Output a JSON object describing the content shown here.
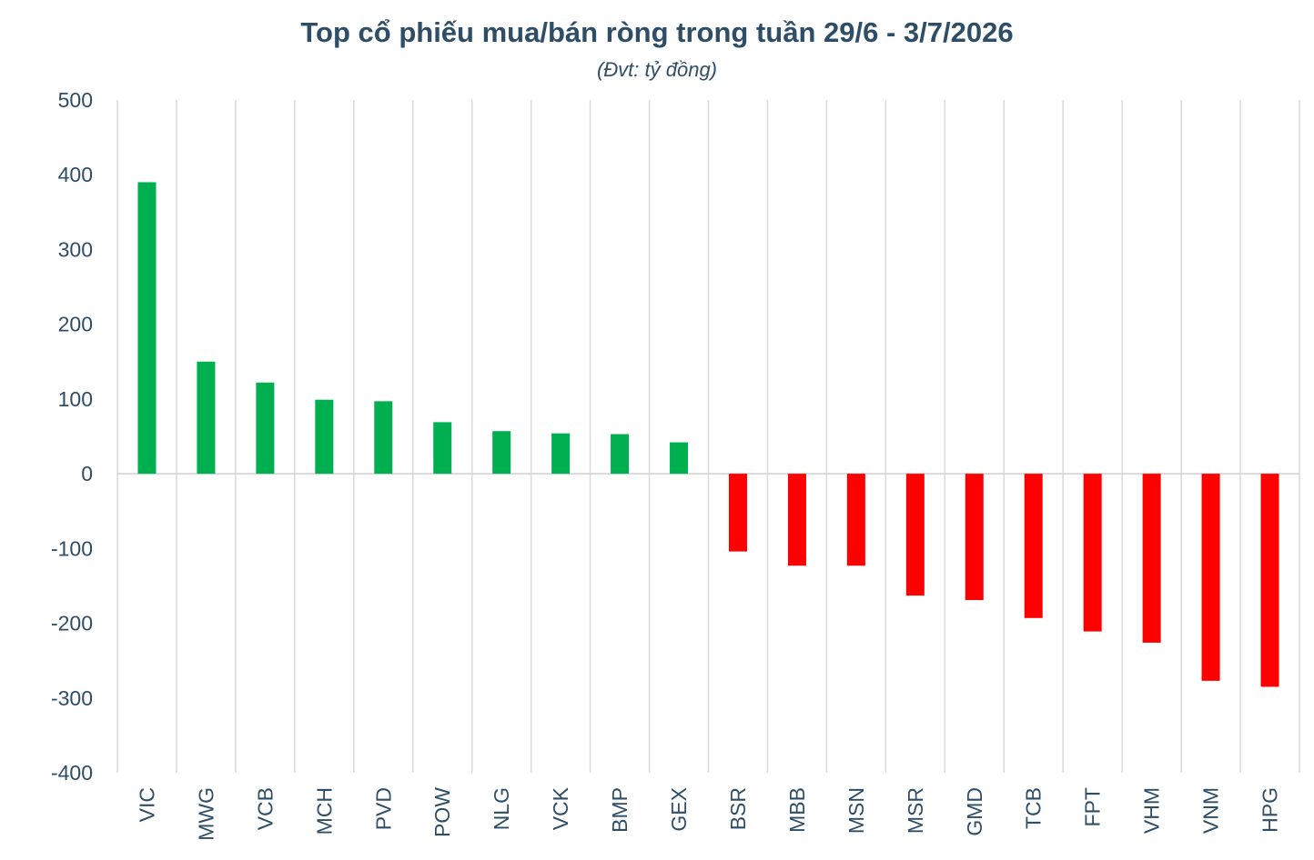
{
  "chart_data": {
    "type": "bar",
    "title": "Top cổ phiếu mua/bán ròng trong tuần 29/6 - 3/7/2026",
    "subtitle": "(Đvt: tỷ đồng)",
    "xlabel": "",
    "ylabel": "",
    "ylim": [
      -400,
      500
    ],
    "yticks": [
      500,
      400,
      300,
      200,
      100,
      0,
      -100,
      -200,
      -300,
      -400
    ],
    "categories": [
      "VIC",
      "MWG",
      "VCB",
      "MCH",
      "PVD",
      "POW",
      "NLG",
      "VCK",
      "BMP",
      "GEX",
      "BSR",
      "MBB",
      "MSN",
      "MSR",
      "GMD",
      "TCB",
      "FPT",
      "VHM",
      "VNM",
      "HPG"
    ],
    "values": [
      390,
      150,
      122,
      99,
      97,
      69,
      57,
      54,
      53,
      42,
      -104,
      -123,
      -123,
      -163,
      -169,
      -193,
      -211,
      -226,
      -277,
      -285
    ],
    "grid": true,
    "legend": "none",
    "colors": {
      "positive": "#00b050",
      "negative": "#ff0000",
      "text": "#2e4d66",
      "grid": "#d9d9d9",
      "zero_line": "#d9d9d9"
    }
  }
}
